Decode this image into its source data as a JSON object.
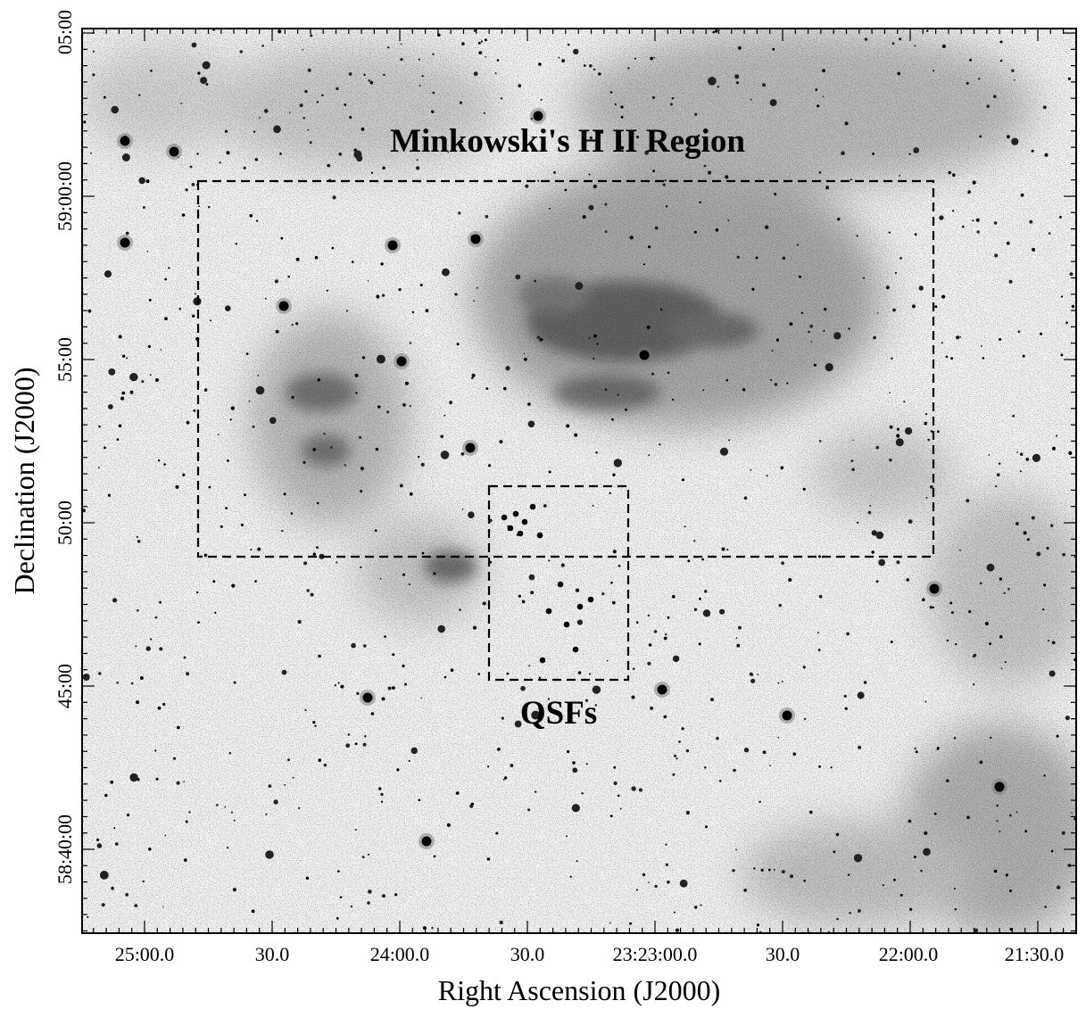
{
  "figure": {
    "region_labels": {
      "hii": "Minkowski's H II Region",
      "qsf": "QSFs"
    },
    "axes": {
      "xlabel": "Right Ascension (J2000)",
      "ylabel": "Declination (J2000)",
      "x_ticks": [
        "25:00.0",
        "30.0",
        "24:00.0",
        "30.0",
        "23:23:00.0",
        "30.0",
        "22:00.0",
        "21:30.0"
      ],
      "y_ticks": [
        "05:00",
        "59:00:00",
        "55:00",
        "50:00",
        "45:00",
        "58:40:00"
      ]
    }
  }
}
